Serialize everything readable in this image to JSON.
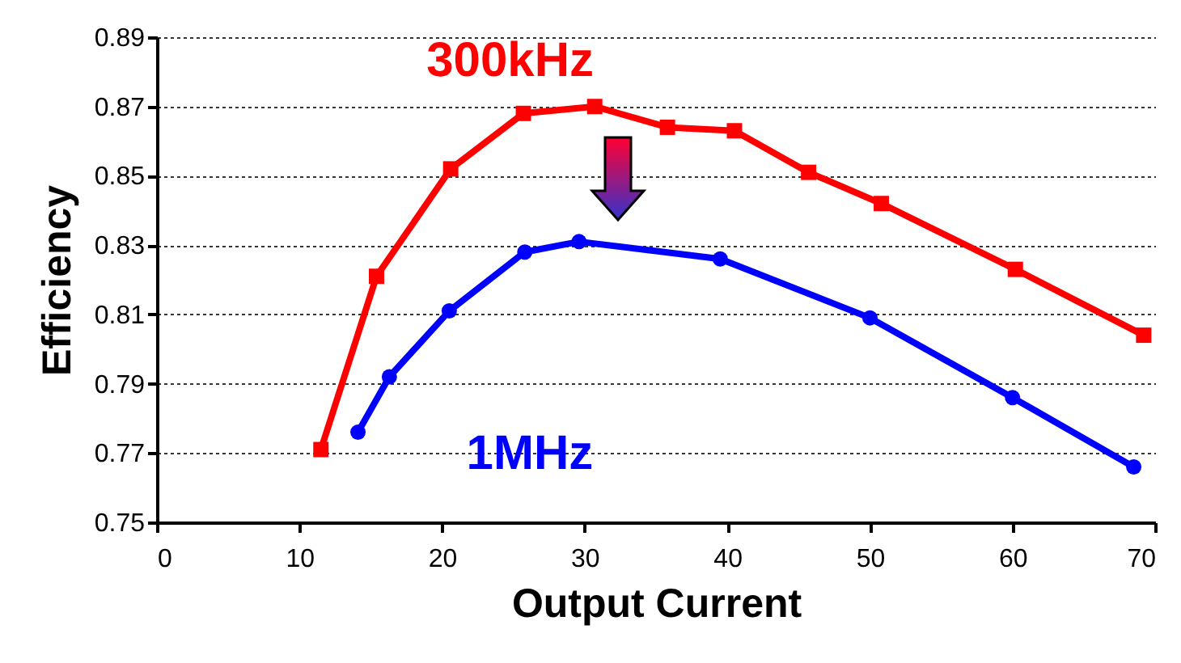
{
  "chart_data": {
    "type": "line",
    "xlabel": "Output Current",
    "ylabel": "Efficiency",
    "xlim": [
      0,
      70
    ],
    "xticks": [
      0,
      10,
      20,
      30,
      40,
      50,
      60,
      70
    ],
    "ylim": [
      0.75,
      0.89
    ],
    "yticks": [
      0.75,
      0.77,
      0.79,
      0.81,
      0.83,
      0.85,
      0.87,
      0.89
    ],
    "grid": "y",
    "series": [
      {
        "name": "300kHz",
        "color": "#ff0000",
        "marker": "square",
        "x": [
          11.5,
          15.4,
          20.6,
          25.7,
          30.7,
          35.8,
          40.5,
          45.7,
          50.8,
          60.2,
          69.2
        ],
        "values": [
          0.771,
          0.821,
          0.852,
          0.868,
          0.87,
          0.864,
          0.863,
          0.851,
          0.842,
          0.823,
          0.804
        ]
      },
      {
        "name": "1MHz",
        "color": "#0000ff",
        "marker": "circle",
        "x": [
          14.1,
          16.3,
          20.5,
          25.8,
          29.6,
          39.5,
          50.0,
          60.0,
          68.5
        ],
        "values": [
          0.776,
          0.792,
          0.811,
          0.828,
          0.831,
          0.826,
          0.809,
          0.786,
          0.766
        ]
      }
    ]
  }
}
